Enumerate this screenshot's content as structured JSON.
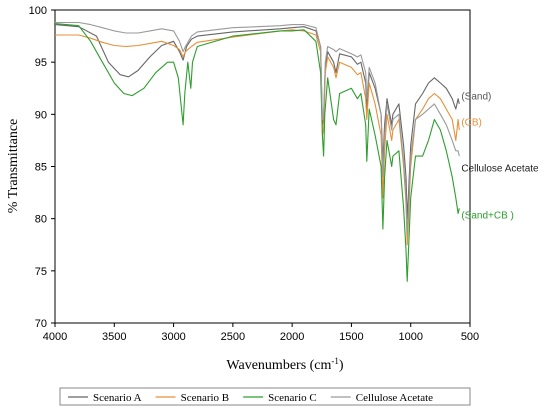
{
  "chart_data": {
    "type": "line",
    "xlabel": "Wavenumbers (cm⁻¹)",
    "xlabel_main": "Wavenumbers (cm",
    "xlabel_sup": "-1",
    "xlabel_end": ")",
    "ylabel": "% Transmittance",
    "xlim": [
      4000,
      500
    ],
    "ylim": [
      70,
      100
    ],
    "x_ticks": [
      4000,
      3500,
      3000,
      2500,
      2000,
      1500,
      1000,
      500
    ],
    "y_ticks": [
      70,
      75,
      80,
      85,
      90,
      95,
      100
    ],
    "legend_position": "bottom",
    "annotations": [
      {
        "text": "(Sand)",
        "x": 590,
        "y": 91.8,
        "color": "#555555"
      },
      {
        "text": "(CB)",
        "x": 590,
        "y": 89.3,
        "color": "#e69138"
      },
      {
        "text": "Cellulose Acetate",
        "x": 590,
        "y": 84.9,
        "color": "#222222"
      },
      {
        "text": "(Sand+CB )",
        "x": 590,
        "y": 80.4,
        "color": "#2e9e2e"
      }
    ],
    "series": [
      {
        "name": "Scenario A",
        "color": "#666666",
        "points": [
          [
            4000,
            98.6
          ],
          [
            3800,
            98.4
          ],
          [
            3650,
            97.5
          ],
          [
            3550,
            95.0
          ],
          [
            3450,
            93.8
          ],
          [
            3380,
            93.6
          ],
          [
            3300,
            94.2
          ],
          [
            3200,
            95.5
          ],
          [
            3100,
            96.6
          ],
          [
            3000,
            97.0
          ],
          [
            2950,
            96.0
          ],
          [
            2920,
            95.2
          ],
          [
            2890,
            96.5
          ],
          [
            2850,
            97.2
          ],
          [
            2800,
            97.5
          ],
          [
            2500,
            97.9
          ],
          [
            2100,
            98.2
          ],
          [
            2000,
            98.3
          ],
          [
            1900,
            98.4
          ],
          [
            1800,
            98.0
          ],
          [
            1760,
            96.5
          ],
          [
            1745,
            89.0
          ],
          [
            1735,
            89.5
          ],
          [
            1720,
            94.5
          ],
          [
            1700,
            96.0
          ],
          [
            1650,
            95.0
          ],
          [
            1630,
            94.0
          ],
          [
            1600,
            95.8
          ],
          [
            1500,
            95.5
          ],
          [
            1450,
            94.8
          ],
          [
            1420,
            95.0
          ],
          [
            1380,
            93.0
          ],
          [
            1370,
            90.5
          ],
          [
            1350,
            94.0
          ],
          [
            1300,
            92.5
          ],
          [
            1250,
            90.0
          ],
          [
            1235,
            85.5
          ],
          [
            1220,
            89.0
          ],
          [
            1200,
            91.5
          ],
          [
            1160,
            89.0
          ],
          [
            1150,
            90.0
          ],
          [
            1100,
            91.0
          ],
          [
            1060,
            87.0
          ],
          [
            1040,
            84.0
          ],
          [
            1030,
            80.0
          ],
          [
            1020,
            82.0
          ],
          [
            1000,
            87.0
          ],
          [
            960,
            91.0
          ],
          [
            900,
            92.0
          ],
          [
            850,
            93.0
          ],
          [
            800,
            93.5
          ],
          [
            750,
            93.0
          ],
          [
            700,
            92.5
          ],
          [
            650,
            91.5
          ],
          [
            620,
            90.5
          ],
          [
            600,
            91.5
          ],
          [
            590,
            91.0
          ]
        ]
      },
      {
        "name": "Scenario B",
        "color": "#e69138",
        "points": [
          [
            4000,
            97.6
          ],
          [
            3800,
            97.6
          ],
          [
            3700,
            97.3
          ],
          [
            3600,
            96.9
          ],
          [
            3500,
            96.6
          ],
          [
            3400,
            96.5
          ],
          [
            3300,
            96.6
          ],
          [
            3200,
            96.8
          ],
          [
            3100,
            97.0
          ],
          [
            3000,
            96.6
          ],
          [
            2950,
            96.2
          ],
          [
            2920,
            95.5
          ],
          [
            2900,
            96.0
          ],
          [
            2850,
            96.5
          ],
          [
            2800,
            96.9
          ],
          [
            2500,
            97.4
          ],
          [
            2100,
            98.0
          ],
          [
            2000,
            98.1
          ],
          [
            1900,
            98.0
          ],
          [
            1800,
            97.6
          ],
          [
            1760,
            96.0
          ],
          [
            1745,
            88.0
          ],
          [
            1735,
            88.5
          ],
          [
            1720,
            94.0
          ],
          [
            1700,
            95.5
          ],
          [
            1650,
            94.5
          ],
          [
            1630,
            93.5
          ],
          [
            1600,
            95.0
          ],
          [
            1500,
            94.5
          ],
          [
            1450,
            93.8
          ],
          [
            1420,
            94.0
          ],
          [
            1380,
            91.5
          ],
          [
            1370,
            89.5
          ],
          [
            1350,
            93.0
          ],
          [
            1300,
            91.0
          ],
          [
            1250,
            88.0
          ],
          [
            1235,
            82.0
          ],
          [
            1220,
            86.5
          ],
          [
            1200,
            90.0
          ],
          [
            1160,
            87.5
          ],
          [
            1150,
            88.5
          ],
          [
            1100,
            89.5
          ],
          [
            1060,
            85.0
          ],
          [
            1040,
            81.5
          ],
          [
            1030,
            77.5
          ],
          [
            1020,
            79.5
          ],
          [
            1000,
            85.0
          ],
          [
            960,
            89.5
          ],
          [
            900,
            90.5
          ],
          [
            850,
            91.5
          ],
          [
            800,
            92.0
          ],
          [
            750,
            91.5
          ],
          [
            700,
            90.5
          ],
          [
            650,
            89.5
          ],
          [
            620,
            87.5
          ],
          [
            600,
            89.5
          ],
          [
            590,
            88.5
          ]
        ]
      },
      {
        "name": "Scenario C",
        "color": "#2e9e2e",
        "points": [
          [
            4000,
            98.7
          ],
          [
            3800,
            98.5
          ],
          [
            3700,
            97.0
          ],
          [
            3600,
            95.0
          ],
          [
            3500,
            93.0
          ],
          [
            3420,
            92.0
          ],
          [
            3350,
            91.8
          ],
          [
            3250,
            92.5
          ],
          [
            3150,
            94.0
          ],
          [
            3050,
            95.0
          ],
          [
            3000,
            95.0
          ],
          [
            2960,
            93.5
          ],
          [
            2920,
            89.0
          ],
          [
            2905,
            92.0
          ],
          [
            2880,
            95.0
          ],
          [
            2855,
            92.5
          ],
          [
            2840,
            95.0
          ],
          [
            2800,
            96.5
          ],
          [
            2500,
            97.5
          ],
          [
            2100,
            98.0
          ],
          [
            2000,
            98.0
          ],
          [
            1900,
            98.1
          ],
          [
            1800,
            97.0
          ],
          [
            1760,
            94.0
          ],
          [
            1745,
            88.0
          ],
          [
            1735,
            86.0
          ],
          [
            1725,
            90.0
          ],
          [
            1700,
            93.5
          ],
          [
            1650,
            89.5
          ],
          [
            1630,
            89.0
          ],
          [
            1600,
            92.0
          ],
          [
            1500,
            92.5
          ],
          [
            1450,
            91.5
          ],
          [
            1420,
            92.0
          ],
          [
            1380,
            89.0
          ],
          [
            1370,
            85.5
          ],
          [
            1350,
            90.5
          ],
          [
            1300,
            88.0
          ],
          [
            1250,
            85.0
          ],
          [
            1235,
            79.0
          ],
          [
            1220,
            84.0
          ],
          [
            1200,
            87.5
          ],
          [
            1160,
            85.0
          ],
          [
            1150,
            86.0
          ],
          [
            1100,
            86.5
          ],
          [
            1060,
            81.0
          ],
          [
            1040,
            77.0
          ],
          [
            1030,
            74.0
          ],
          [
            1020,
            76.5
          ],
          [
            1000,
            82.0
          ],
          [
            960,
            86.0
          ],
          [
            900,
            86.0
          ],
          [
            850,
            87.5
          ],
          [
            800,
            89.5
          ],
          [
            750,
            88.5
          ],
          [
            700,
            86.5
          ],
          [
            650,
            84.0
          ],
          [
            620,
            82.0
          ],
          [
            600,
            80.5
          ],
          [
            590,
            81.0
          ]
        ]
      },
      {
        "name": "Cellulose Acetate",
        "color": "#9a9a9a",
        "points": [
          [
            4000,
            98.8
          ],
          [
            3800,
            98.8
          ],
          [
            3700,
            98.6
          ],
          [
            3600,
            98.3
          ],
          [
            3500,
            98.0
          ],
          [
            3400,
            97.8
          ],
          [
            3300,
            97.8
          ],
          [
            3200,
            98.0
          ],
          [
            3100,
            98.2
          ],
          [
            3000,
            98.0
          ],
          [
            2950,
            97.0
          ],
          [
            2920,
            96.0
          ],
          [
            2900,
            96.5
          ],
          [
            2850,
            97.5
          ],
          [
            2800,
            97.9
          ],
          [
            2500,
            98.3
          ],
          [
            2100,
            98.5
          ],
          [
            2000,
            98.6
          ],
          [
            1900,
            98.6
          ],
          [
            1800,
            98.3
          ],
          [
            1760,
            96.5
          ],
          [
            1745,
            89.5
          ],
          [
            1735,
            90.0
          ],
          [
            1720,
            95.0
          ],
          [
            1700,
            96.5
          ],
          [
            1650,
            96.2
          ],
          [
            1630,
            96.0
          ],
          [
            1600,
            96.3
          ],
          [
            1500,
            95.8
          ],
          [
            1450,
            95.5
          ],
          [
            1420,
            95.7
          ],
          [
            1380,
            94.0
          ],
          [
            1370,
            91.5
          ],
          [
            1350,
            94.5
          ],
          [
            1300,
            93.0
          ],
          [
            1250,
            90.0
          ],
          [
            1235,
            84.0
          ],
          [
            1220,
            88.0
          ],
          [
            1200,
            91.0
          ],
          [
            1160,
            88.5
          ],
          [
            1150,
            89.5
          ],
          [
            1100,
            90.0
          ],
          [
            1060,
            85.5
          ],
          [
            1040,
            82.0
          ],
          [
            1030,
            78.5
          ],
          [
            1020,
            80.5
          ],
          [
            1000,
            86.0
          ],
          [
            960,
            89.5
          ],
          [
            900,
            90.0
          ],
          [
            850,
            90.5
          ],
          [
            800,
            91.0
          ],
          [
            750,
            90.0
          ],
          [
            700,
            89.0
          ],
          [
            650,
            87.5
          ],
          [
            620,
            86.5
          ],
          [
            600,
            86.5
          ],
          [
            590,
            86.0
          ]
        ]
      }
    ]
  }
}
